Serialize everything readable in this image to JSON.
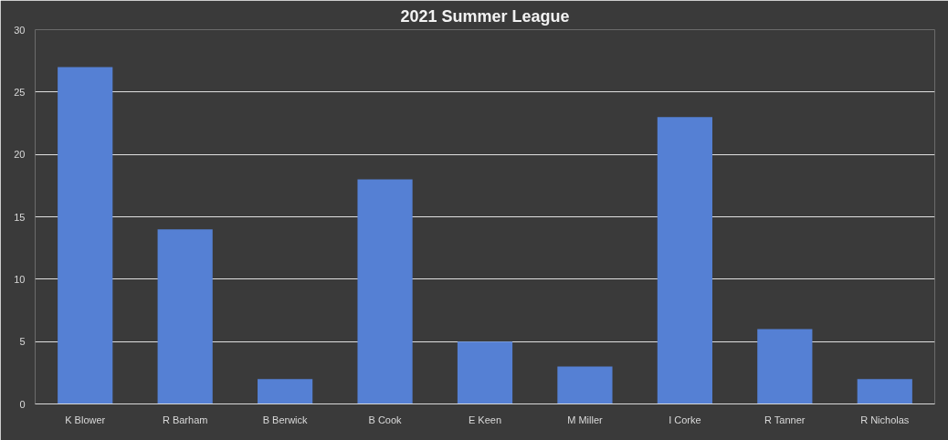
{
  "chart_data": {
    "type": "bar",
    "title": "2021 Summer League",
    "categories": [
      "K Blower",
      "R Barham",
      "B Berwick",
      "B Cook",
      "E Keen",
      "M Miller",
      "I Corke",
      "R Tanner",
      "R Nicholas"
    ],
    "values": [
      27,
      14,
      2,
      18,
      5,
      3,
      23,
      6,
      2
    ],
    "color": "#5580d4",
    "ylim": [
      0,
      30
    ],
    "yticks": [
      0,
      5,
      10,
      15,
      20,
      25,
      30
    ],
    "grid": "y"
  }
}
